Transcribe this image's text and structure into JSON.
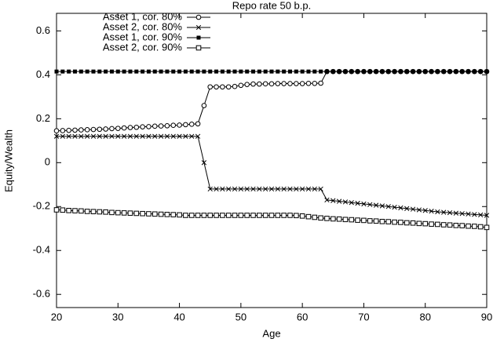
{
  "chart_data": {
    "type": "line",
    "title": "Repo rate 50 b.p.",
    "x_label": "Age",
    "y_label": "Equity/Wealth",
    "x": [
      20,
      21,
      22,
      23,
      24,
      25,
      26,
      27,
      28,
      29,
      30,
      31,
      32,
      33,
      34,
      35,
      36,
      37,
      38,
      39,
      40,
      41,
      42,
      43,
      44,
      45,
      46,
      47,
      48,
      49,
      50,
      51,
      52,
      53,
      54,
      55,
      56,
      57,
      58,
      59,
      60,
      61,
      62,
      63,
      64,
      65,
      66,
      67,
      68,
      69,
      70,
      71,
      72,
      73,
      74,
      75,
      76,
      77,
      78,
      79,
      80,
      81,
      82,
      83,
      84,
      85,
      86,
      87,
      88,
      89,
      90
    ],
    "series": [
      {
        "name": "Asset 1, cor. 80%",
        "color": "#000000",
        "marker": "circle",
        "values": [
          0.145,
          0.146,
          0.147,
          0.148,
          0.149,
          0.15,
          0.151,
          0.152,
          0.153,
          0.155,
          0.156,
          0.158,
          0.16,
          0.161,
          0.163,
          0.164,
          0.166,
          0.167,
          0.168,
          0.17,
          0.171,
          0.173,
          0.175,
          0.177,
          0.26,
          0.345,
          0.345,
          0.345,
          0.345,
          0.347,
          0.352,
          0.356,
          0.358,
          0.358,
          0.359,
          0.359,
          0.36,
          0.36,
          0.36,
          0.36,
          0.36,
          0.361,
          0.361,
          0.362,
          0.415,
          0.415,
          0.415,
          0.415,
          0.415,
          0.415,
          0.415,
          0.415,
          0.415,
          0.415,
          0.415,
          0.415,
          0.415,
          0.415,
          0.415,
          0.415,
          0.415,
          0.415,
          0.415,
          0.415,
          0.415,
          0.415,
          0.415,
          0.415,
          0.415,
          0.415,
          0.415
        ]
      },
      {
        "name": "Asset 2, cor. 80%",
        "color": "#000000",
        "marker": "x",
        "values": [
          0.12,
          0.12,
          0.12,
          0.12,
          0.12,
          0.12,
          0.12,
          0.12,
          0.12,
          0.12,
          0.12,
          0.12,
          0.12,
          0.12,
          0.12,
          0.12,
          0.12,
          0.12,
          0.12,
          0.12,
          0.12,
          0.12,
          0.12,
          0.12,
          0.0,
          -0.12,
          -0.12,
          -0.12,
          -0.12,
          -0.12,
          -0.12,
          -0.12,
          -0.12,
          -0.12,
          -0.12,
          -0.12,
          -0.12,
          -0.12,
          -0.12,
          -0.12,
          -0.12,
          -0.12,
          -0.12,
          -0.12,
          -0.17,
          -0.173,
          -0.176,
          -0.179,
          -0.182,
          -0.185,
          -0.188,
          -0.191,
          -0.194,
          -0.197,
          -0.2,
          -0.203,
          -0.206,
          -0.209,
          -0.212,
          -0.215,
          -0.218,
          -0.221,
          -0.224,
          -0.226,
          -0.228,
          -0.23,
          -0.232,
          -0.234,
          -0.236,
          -0.238,
          -0.24
        ]
      },
      {
        "name": "Asset 1, cor. 90%",
        "color": "#000000",
        "marker": "filled-square",
        "values": [
          0.415,
          0.415,
          0.415,
          0.415,
          0.415,
          0.415,
          0.415,
          0.415,
          0.415,
          0.415,
          0.415,
          0.415,
          0.415,
          0.415,
          0.415,
          0.415,
          0.415,
          0.415,
          0.415,
          0.415,
          0.415,
          0.415,
          0.415,
          0.415,
          0.415,
          0.415,
          0.415,
          0.415,
          0.415,
          0.415,
          0.415,
          0.415,
          0.415,
          0.415,
          0.415,
          0.415,
          0.415,
          0.415,
          0.415,
          0.415,
          0.415,
          0.415,
          0.415,
          0.415,
          0.415,
          0.415,
          0.415,
          0.415,
          0.415,
          0.415,
          0.415,
          0.415,
          0.415,
          0.415,
          0.415,
          0.415,
          0.415,
          0.415,
          0.415,
          0.415,
          0.415,
          0.415,
          0.415,
          0.415,
          0.415,
          0.415,
          0.415,
          0.415,
          0.415,
          0.415,
          0.415
        ]
      },
      {
        "name": "Asset 2, cor. 90%",
        "color": "#000000",
        "marker": "square",
        "values": [
          -0.215,
          -0.216,
          -0.218,
          -0.219,
          -0.22,
          -0.222,
          -0.223,
          -0.224,
          -0.225,
          -0.227,
          -0.228,
          -0.229,
          -0.23,
          -0.231,
          -0.232,
          -0.233,
          -0.234,
          -0.235,
          -0.236,
          -0.237,
          -0.238,
          -0.24,
          -0.24,
          -0.24,
          -0.24,
          -0.24,
          -0.24,
          -0.24,
          -0.24,
          -0.24,
          -0.24,
          -0.24,
          -0.24,
          -0.24,
          -0.24,
          -0.24,
          -0.24,
          -0.24,
          -0.24,
          -0.241,
          -0.243,
          -0.246,
          -0.249,
          -0.252,
          -0.254,
          -0.256,
          -0.257,
          -0.259,
          -0.26,
          -0.262,
          -0.263,
          -0.265,
          -0.266,
          -0.268,
          -0.269,
          -0.271,
          -0.272,
          -0.274,
          -0.275,
          -0.277,
          -0.278,
          -0.28,
          -0.281,
          -0.283,
          -0.284,
          -0.286,
          -0.287,
          -0.289,
          -0.29,
          -0.292,
          -0.295
        ]
      }
    ],
    "xlim": [
      20,
      90
    ],
    "xticks": [
      20,
      30,
      40,
      50,
      60,
      70,
      80,
      90
    ],
    "ylim": [
      -0.66,
      0.68
    ],
    "yticks": [
      -0.6,
      -0.4,
      -0.2,
      0,
      0.2,
      0.4,
      0.6
    ],
    "grid": false,
    "legend": "upper-left"
  }
}
